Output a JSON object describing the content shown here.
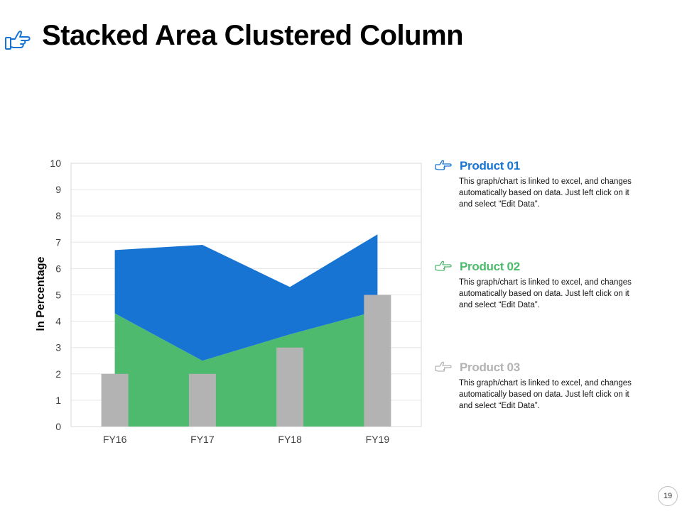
{
  "title": "Stacked Area Clustered Column",
  "page_number": "19",
  "colors": {
    "product01": "#1874D2",
    "product02": "#4DBA6E",
    "product03": "#B3B3B3",
    "header_icon": "#1874D2"
  },
  "header_icon": "pointing-hand-icon",
  "legend": [
    {
      "title": "Product 01",
      "color": "#1874D2",
      "icon": "pointing-hand-icon",
      "description": "This graph/chart is linked to excel, and changes automatically based on data. Just left click on it and select “Edit Data”."
    },
    {
      "title": "Product 02",
      "color": "#4DBA6E",
      "icon": "pointing-hand-icon",
      "description": "This graph/chart is linked to excel, and changes automatically based on data. Just left click on it and select “Edit Data”."
    },
    {
      "title": "Product 03",
      "color": "#B3B3B3",
      "icon": "pointing-hand-icon",
      "description": "This graph/chart is linked to excel, and changes automatically based on data. Just left click on it and select “Edit Data”."
    }
  ],
  "chart_data": {
    "type": "area",
    "categories": [
      "FY16",
      "FY17",
      "FY18",
      "FY19"
    ],
    "series": [
      {
        "name": "Product 02",
        "kind": "area",
        "stacked": true,
        "color": "#4DBA6E",
        "values": [
          4.3,
          2.5,
          3.5,
          4.4
        ]
      },
      {
        "name": "Product 01",
        "kind": "area",
        "stacked": true,
        "color": "#1874D2",
        "values": [
          2.4,
          4.4,
          1.8,
          2.9
        ]
      },
      {
        "name": "Product 03",
        "kind": "column",
        "stacked": false,
        "color": "#B3B3B3",
        "values": [
          2,
          2,
          3,
          5
        ]
      }
    ],
    "ylabel": "In Percentage",
    "xlabel": "",
    "ylim": [
      0,
      10
    ],
    "yticks": [
      "0",
      "1",
      "2",
      "3",
      "4",
      "5",
      "6",
      "7",
      "8",
      "9",
      "10"
    ],
    "grid": true
  }
}
